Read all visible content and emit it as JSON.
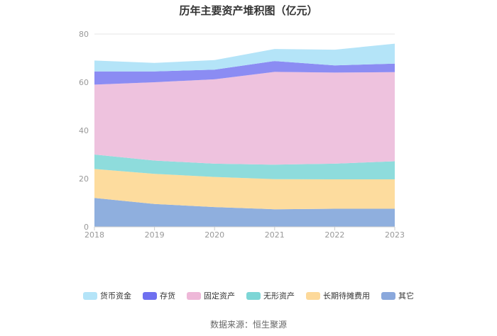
{
  "chart_data": {
    "type": "area",
    "stacked": true,
    "title": "历年主要资产堆积图（亿元）",
    "categories": [
      "2018",
      "2019",
      "2020",
      "2021",
      "2022",
      "2023"
    ],
    "ylim": [
      0,
      80
    ],
    "yticks": [
      "0",
      "20",
      "40",
      "60",
      "80"
    ],
    "grid": true,
    "legend_position": "bottom",
    "series": [
      {
        "name": "其它",
        "color": "#8fafde",
        "values": [
          12.0,
          9.5,
          8.2,
          7.3,
          7.5,
          7.5
        ]
      },
      {
        "name": "长期待摊费用",
        "color": "#fddc9e",
        "values": [
          12.0,
          12.5,
          12.5,
          12.5,
          12.2,
          12.2
        ]
      },
      {
        "name": "无形资产",
        "color": "#8edcdc",
        "values": [
          6.0,
          5.5,
          5.5,
          6.0,
          6.5,
          7.5
        ]
      },
      {
        "name": "固定资产",
        "color": "#eec2de",
        "values": [
          29.0,
          32.5,
          35.0,
          38.5,
          37.8,
          37.0
        ]
      },
      {
        "name": "存货",
        "color": "#8b8cf3",
        "values": [
          5.5,
          4.5,
          4.0,
          4.5,
          3.0,
          3.5
        ]
      },
      {
        "name": "货币资金",
        "color": "#b4e4f8",
        "values": [
          4.5,
          3.5,
          4.0,
          5.0,
          6.5,
          8.3
        ]
      }
    ]
  },
  "legend": [
    {
      "label": "货币资金",
      "color": "#b4e4f8"
    },
    {
      "label": "存货",
      "color": "#6f70f0"
    },
    {
      "label": "固定资产",
      "color": "#eeb8d8"
    },
    {
      "label": "无形资产",
      "color": "#7dd6d6"
    },
    {
      "label": "长期待摊费用",
      "color": "#fdd99a"
    },
    {
      "label": "其它",
      "color": "#8aa8dc"
    }
  ],
  "source": "数据来源：恒生聚源"
}
